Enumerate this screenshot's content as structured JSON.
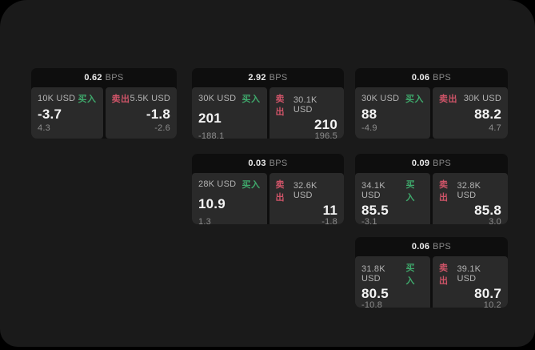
{
  "labels": {
    "buy": "买入",
    "sell": "卖出",
    "bps_unit": "BPS"
  },
  "colors": {
    "page_background": "#000000",
    "window_background": "#1a1a1a",
    "card_background": "#0e0e0e",
    "panel_background": "#2a2a2a",
    "buy_green": "#3fa96c",
    "sell_red": "#cf5468",
    "value_white": "#f4f4f4",
    "muted_gray": "#8d8d8d"
  },
  "cards": [
    {
      "bps": "0.62",
      "buy": {
        "size": "10K USD",
        "value": "-3.7",
        "sub": "4.3"
      },
      "sell": {
        "size": "5.5K USD",
        "value": "-1.8",
        "sub": "-2.6"
      }
    },
    {
      "bps": "2.92",
      "buy": {
        "size": "30K USD",
        "value": "201",
        "sub": "-188.1"
      },
      "sell": {
        "size": "30.1K USD",
        "value": "210",
        "sub": "196.5"
      }
    },
    {
      "bps": "0.06",
      "buy": {
        "size": "30K USD",
        "value": "88",
        "sub": "-4.9"
      },
      "sell": {
        "size": "30K USD",
        "value": "88.2",
        "sub": "4.7"
      }
    },
    {
      "bps": "0.03",
      "buy": {
        "size": "28K USD",
        "value": "10.9",
        "sub": "1.3"
      },
      "sell": {
        "size": "32.6K USD",
        "value": "11",
        "sub": "-1.8"
      }
    },
    {
      "bps": "0.09",
      "buy": {
        "size": "34.1K USD",
        "value": "85.5",
        "sub": "-3.1"
      },
      "sell": {
        "size": "32.8K USD",
        "value": "85.8",
        "sub": "3.0"
      }
    },
    {
      "bps": "0.06",
      "buy": {
        "size": "31.8K USD",
        "value": "80.5",
        "sub": "-10.8"
      },
      "sell": {
        "size": "39.1K USD",
        "value": "80.7",
        "sub": "10.2"
      }
    }
  ]
}
